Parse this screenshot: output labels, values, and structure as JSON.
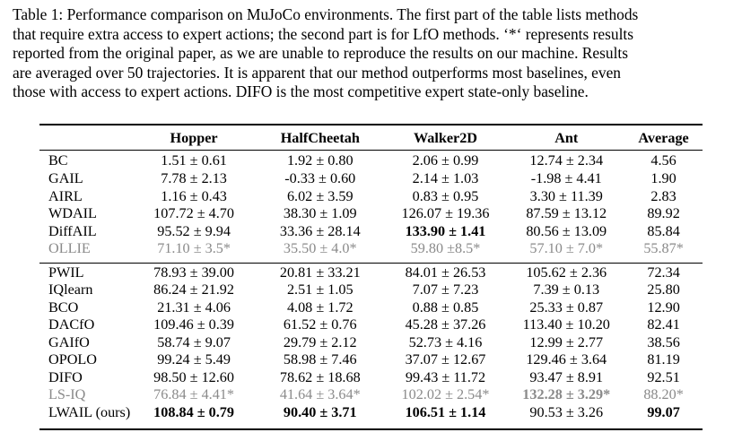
{
  "caption": {
    "lines": [
      "Table 1: Performance comparison on MuJoCo environments. The first part of the table lists methods",
      "that require extra access to expert actions; the second part is for LfO methods. ‘*‘ represents results",
      "reported from the original paper, as we are unable to reproduce the results on our machine. Results",
      "are averaged over 50 trajectories. It is apparent that our method outperforms most baselines, even",
      "those with access to expert actions. DIFO is the most competitive expert state-only baseline."
    ]
  },
  "table": {
    "headers": [
      "",
      "Hopper",
      "HalfCheetah",
      "Walker2D",
      "Ant",
      "Average"
    ],
    "part1": [
      {
        "method": "BC",
        "cells": [
          "1.51 ± 0.61",
          "1.92 ± 0.80",
          "2.06 ± 0.99",
          "12.74 ± 2.34",
          "4.56"
        ]
      },
      {
        "method": "GAIL",
        "cells": [
          "7.78 ± 2.13",
          "-0.33 ± 0.60",
          "2.14 ± 1.03",
          "-1.98 ± 4.41",
          "1.90"
        ]
      },
      {
        "method": "AIRL",
        "cells": [
          "1.16 ± 0.43",
          "6.02 ± 3.59",
          "0.83 ± 0.95",
          "3.30 ± 11.39",
          "2.83"
        ]
      },
      {
        "method": "WDAIL",
        "cells": [
          "107.72 ± 4.70",
          "38.30 ± 1.09",
          "126.07 ± 19.36",
          "87.59 ± 13.12",
          "89.92"
        ]
      },
      {
        "method": "DiffAIL",
        "cells": [
          "95.52 ± 9.94",
          "33.36 ± 28.14",
          "133.90 ± 1.41",
          "80.56 ± 13.09",
          "85.84"
        ]
      },
      {
        "method": "OLLIE",
        "cells": [
          "71.10 ± 3.5*",
          "35.50 ± 4.0*",
          "59.80 ±8.5*",
          "57.10 ± 7.0*",
          "55.87*"
        ]
      }
    ],
    "part2": [
      {
        "method": "PWIL",
        "cells": [
          "78.93 ± 39.00",
          "20.81 ± 33.21",
          "84.01 ± 26.53",
          "105.62 ± 2.36",
          "72.34"
        ]
      },
      {
        "method": "IQlearn",
        "cells": [
          "86.24 ± 21.92",
          "2.51 ± 1.05",
          "7.07 ± 7.23",
          "7.39 ± 0.13",
          "25.80"
        ]
      },
      {
        "method": "BCO",
        "cells": [
          "21.31 ± 4.06",
          "4.08 ± 1.72",
          "0.88 ± 0.85",
          "25.33 ± 0.87",
          "12.90"
        ]
      },
      {
        "method": "DACfO",
        "cells": [
          "109.46 ± 0.39",
          "61.52 ± 0.76",
          "45.28 ± 37.26",
          "113.40 ± 10.20",
          "82.41"
        ]
      },
      {
        "method": "GAIfO",
        "cells": [
          "58.74 ± 9.07",
          "29.79 ± 2.12",
          "52.73 ± 4.16",
          "12.99 ± 2.77",
          "38.56"
        ]
      },
      {
        "method": "OPOLO",
        "cells": [
          "99.24 ± 5.49",
          "58.98 ± 7.46",
          "37.07 ± 12.67",
          "129.46 ± 3.64",
          "81.19"
        ]
      },
      {
        "method": "DIFO",
        "cells": [
          "98.50 ± 12.60",
          "78.62 ± 18.68",
          "99.43 ± 11.72",
          "93.47 ± 8.91",
          "92.51"
        ]
      },
      {
        "method": "LS-IQ",
        "cells": [
          "76.84 ± 4.41*",
          "41.64 ± 3.64*",
          "102.02 ± 2.54*",
          "132.28 ± 3.29*",
          "88.20*"
        ]
      },
      {
        "method": "LWAIL (ours)",
        "cells": [
          "108.84 ± 0.79",
          "90.40 ± 3.71",
          "106.51 ± 1.14",
          "90.53 ± 3.26",
          "99.07"
        ]
      }
    ]
  }
}
